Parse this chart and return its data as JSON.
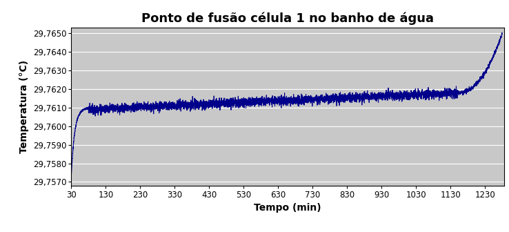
{
  "title": "Ponto de fusão célula 1 no banho de água",
  "xlabel": "Tempo (min)",
  "ylabel": "Temperatura (°C)",
  "bg_color": "#c8c8c8",
  "fig_bg_color": "#ffffff",
  "line_color": "#00008B",
  "line_width": 0.8,
  "xlim": [
    30,
    1285
  ],
  "ylim": [
    29.7568,
    29.7653
  ],
  "xticks": [
    30,
    130,
    230,
    330,
    430,
    530,
    630,
    730,
    830,
    930,
    1030,
    1130,
    1230
  ],
  "yticks": [
    29.757,
    29.758,
    29.759,
    29.76,
    29.761,
    29.762,
    29.763,
    29.764,
    29.765
  ],
  "ytick_labels": [
    "29,7570",
    "29,7580",
    "29,7590",
    "29,7600",
    "29,7610",
    "29,7620",
    "29,7630",
    "29,7640",
    "29,7650"
  ],
  "xtick_labels": [
    "30",
    "130",
    "230",
    "330",
    "430",
    "530",
    "630",
    "730",
    "830",
    "930",
    "1030",
    "1130",
    "1230"
  ],
  "title_fontsize": 13,
  "label_fontsize": 10,
  "tick_fontsize": 8.5,
  "grid_color": "#ffffff",
  "grid_linewidth": 0.8
}
